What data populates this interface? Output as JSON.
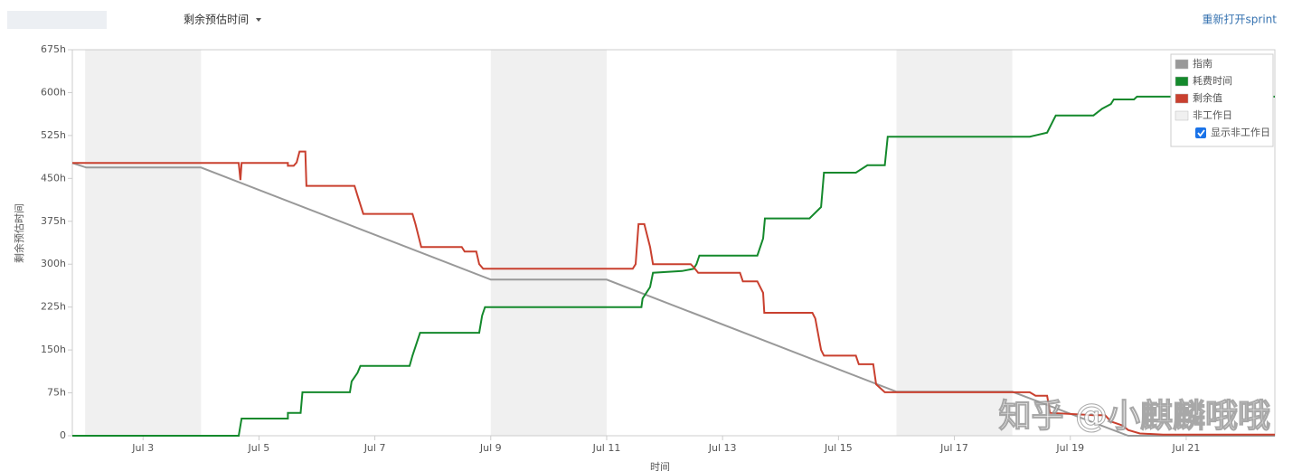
{
  "header": {
    "dropdown": "剩余预估时间",
    "link": "重新打开sprint"
  },
  "watermark": "知乎 @小麒麟哦哦",
  "chart_data": {
    "type": "line",
    "y_label": "剩余预估时间",
    "x_label": "时间",
    "xlim": [
      1.78,
      22.53
    ],
    "xticks": [
      {
        "value": 3,
        "label": "Jul 3"
      },
      {
        "value": 5,
        "label": "Jul 5"
      },
      {
        "value": 7,
        "label": "Jul 7"
      },
      {
        "value": 9,
        "label": "Jul 9"
      },
      {
        "value": 11,
        "label": "Jul 11"
      },
      {
        "value": 13,
        "label": "Jul 13"
      },
      {
        "value": 15,
        "label": "Jul 15"
      },
      {
        "value": 17,
        "label": "Jul 17"
      },
      {
        "value": 19,
        "label": "Jul 19"
      },
      {
        "value": 21,
        "label": "Jul 21"
      }
    ],
    "ylim": [
      0,
      675
    ],
    "yticks": [
      0,
      {
        "value": 75,
        "label": "75h"
      },
      {
        "value": 150,
        "label": "150h"
      },
      {
        "value": 225,
        "label": "225h"
      },
      {
        "value": 300,
        "label": "300h"
      },
      {
        "value": 375,
        "label": "375h"
      },
      {
        "value": 450,
        "label": "450h"
      },
      {
        "value": 525,
        "label": "525h"
      },
      {
        "value": 600,
        "label": "600h"
      },
      {
        "value": 675,
        "label": "675h"
      }
    ],
    "legend": "upper right",
    "nonworking": {
      "name": "非工作日",
      "color": "#f0f0f0",
      "periods": [
        [
          2,
          4
        ],
        [
          9,
          11
        ],
        [
          16,
          18
        ]
      ],
      "toggle_label": "显示非工作日"
    },
    "series": [
      {
        "name": "指南",
        "color": "#999999",
        "x": [
          1.78,
          2.02,
          4,
          9,
          11,
          16,
          18,
          20,
          22.53
        ],
        "values": [
          477,
          469,
          469,
          273,
          273,
          77,
          77,
          0,
          0
        ]
      },
      {
        "name": "耗费时间",
        "color": "#14892c",
        "x": [
          1.78,
          4.65,
          4.7,
          5.5,
          5.5,
          5.72,
          5.75,
          6.57,
          6.6,
          6.7,
          6.75,
          7.6,
          7.65,
          7.78,
          8.8,
          8.85,
          8.9,
          11.6,
          11.62,
          11.75,
          11.8,
          12.3,
          12.5,
          12.55,
          12.6,
          13.6,
          13.7,
          13.73,
          14.5,
          14.7,
          14.75,
          15.3,
          15.5,
          15.8,
          15.85,
          18.3,
          18.6,
          18.75,
          19.4,
          19.55,
          19.7,
          19.75,
          20.1,
          20.15,
          22.53
        ],
        "values": [
          0,
          0,
          30,
          30,
          40,
          40,
          76,
          76,
          95,
          110,
          122,
          122,
          140,
          180,
          180,
          210,
          225,
          225,
          240,
          260,
          285,
          288,
          292,
          300,
          315,
          315,
          345,
          380,
          380,
          400,
          460,
          460,
          473,
          473,
          523,
          523,
          530,
          560,
          560,
          572,
          580,
          588,
          588,
          593,
          593
        ]
      },
      {
        "name": "剩余值",
        "color": "#c9402f",
        "x": [
          1.78,
          4.65,
          4.68,
          4.7,
          5.5,
          5.5,
          5.6,
          5.65,
          5.7,
          5.8,
          5.82,
          6.65,
          6.7,
          6.8,
          7.65,
          7.7,
          7.8,
          8.5,
          8.55,
          8.75,
          8.8,
          8.87,
          11.45,
          11.5,
          11.55,
          11.65,
          11.75,
          11.8,
          12.45,
          12.5,
          12.58,
          13.3,
          13.35,
          13.6,
          13.7,
          13.72,
          14.55,
          14.6,
          14.7,
          14.75,
          15.3,
          15.35,
          15.6,
          15.65,
          15.8,
          18.3,
          18.4,
          18.6,
          18.65,
          19.4,
          19.6,
          19.7,
          19.9,
          20.0,
          20.2,
          20.6,
          22.53
        ],
        "values": [
          477,
          477,
          447,
          477,
          477,
          472,
          472,
          478,
          497,
          497,
          437,
          437,
          420,
          388,
          388,
          370,
          330,
          330,
          322,
          322,
          300,
          292,
          292,
          300,
          370,
          370,
          330,
          300,
          300,
          295,
          285,
          285,
          270,
          270,
          250,
          215,
          215,
          205,
          150,
          140,
          140,
          125,
          125,
          90,
          76,
          76,
          70,
          70,
          40,
          36,
          36,
          25,
          18,
          10,
          4,
          2,
          2
        ]
      }
    ]
  }
}
